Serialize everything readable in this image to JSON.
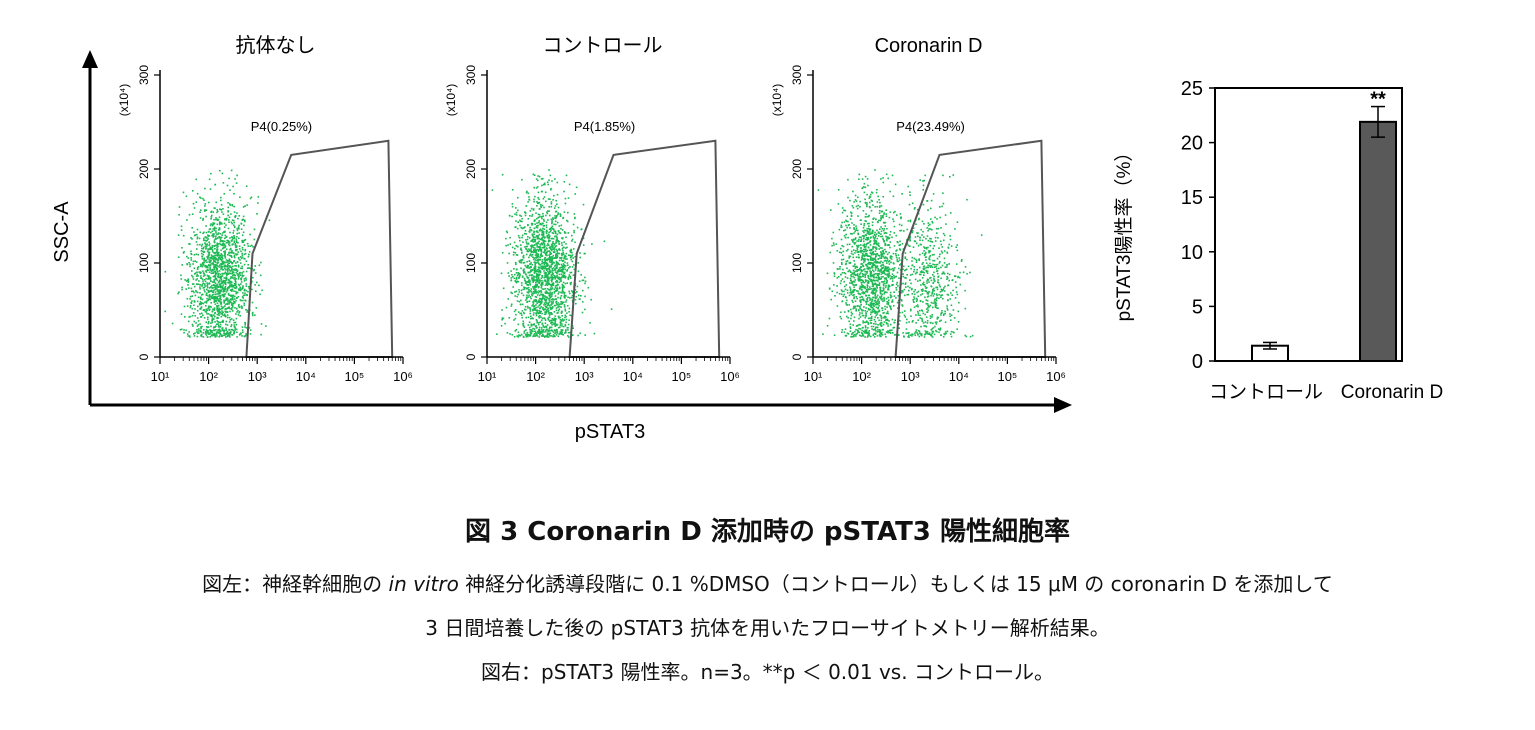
{
  "chart_data": [
    {
      "type": "scatter",
      "title": "抗体なし",
      "gate_label": "P4(0.25%)",
      "xlabel": "pSTAT3",
      "ylabel": "SSC-A",
      "y_multiplier": "(x10⁴)",
      "x_scale": "log",
      "xlim": [
        10,
        1000000
      ],
      "x_ticks": [
        "10¹",
        "10²",
        "10³",
        "10⁴",
        "10⁵",
        "10⁶"
      ],
      "ylim": [
        0,
        300
      ],
      "y_ticks": [
        "0",
        "100",
        "200",
        "300"
      ],
      "gate_vertices": [
        [
          600,
          0
        ],
        [
          800,
          110
        ],
        [
          5000,
          215
        ],
        [
          500000,
          230
        ],
        [
          600000,
          0
        ]
      ],
      "clusters": [
        {
          "center_x": 160,
          "center_y": 85,
          "count": 1700
        }
      ]
    },
    {
      "type": "scatter",
      "title": "コントロール",
      "gate_label": "P4(1.85%)",
      "xlabel": "pSTAT3",
      "ylabel": "SSC-A",
      "y_multiplier": "(x10⁴)",
      "x_scale": "log",
      "xlim": [
        10,
        1000000
      ],
      "x_ticks": [
        "10¹",
        "10²",
        "10³",
        "10⁴",
        "10⁵",
        "10⁶"
      ],
      "ylim": [
        0,
        300
      ],
      "y_ticks": [
        "0",
        "100",
        "200",
        "300"
      ],
      "gate_vertices": [
        [
          500,
          0
        ],
        [
          700,
          110
        ],
        [
          4000,
          215
        ],
        [
          500000,
          230
        ],
        [
          600000,
          0
        ]
      ],
      "clusters": [
        {
          "center_x": 150,
          "center_y": 90,
          "count": 1900
        }
      ]
    },
    {
      "type": "scatter",
      "title": "Coronarin D",
      "gate_label": "P4(23.49%)",
      "xlabel": "pSTAT3",
      "ylabel": "SSC-A",
      "y_multiplier": "(x10⁴)",
      "x_scale": "log",
      "xlim": [
        10,
        1000000
      ],
      "x_ticks": [
        "10¹",
        "10²",
        "10³",
        "10⁴",
        "10⁵",
        "10⁶"
      ],
      "ylim": [
        0,
        300
      ],
      "y_ticks": [
        "0",
        "100",
        "200",
        "300"
      ],
      "gate_vertices": [
        [
          500,
          0
        ],
        [
          700,
          110
        ],
        [
          4000,
          215
        ],
        [
          500000,
          230
        ],
        [
          600000,
          0
        ]
      ],
      "clusters": [
        {
          "center_x": 150,
          "center_y": 90,
          "count": 1500
        },
        {
          "center_x": 2500,
          "center_y": 80,
          "count": 600
        }
      ]
    },
    {
      "type": "bar",
      "categories": [
        "コントロール",
        "Coronarin D"
      ],
      "values": [
        1.4,
        21.9
      ],
      "errors": [
        0.3,
        1.4
      ],
      "ylabel": "pSTAT3陽性率（%）",
      "ylim": [
        0,
        25
      ],
      "y_ticks": [
        "0",
        "5",
        "10",
        "15",
        "20",
        "25"
      ],
      "significance": "**",
      "bar_colors": [
        "#ffffff",
        "#595959"
      ]
    }
  ],
  "colors": {
    "dots": "#1db954",
    "gate": "#555555",
    "axis": "#000000",
    "bar_edge": "#000000"
  },
  "caption": {
    "title": "図 3 Coronarin D 添加時の pSTAT3 陽性細胞率",
    "line1_pre": "図左：神経幹細胞の ",
    "line1_italic": "in vitro",
    "line1_post": " 神経分化誘導段階に 0.1 %DMSO（コントロール）もしくは 15 μM の coronarin D を添加して",
    "line2": "3 日間培養した後の pSTAT3 抗体を用いたフローサイトメトリー解析結果。",
    "line3": "図右：pSTAT3 陽性率。n=3。**p ＜ 0.01 vs. コントロール。"
  }
}
